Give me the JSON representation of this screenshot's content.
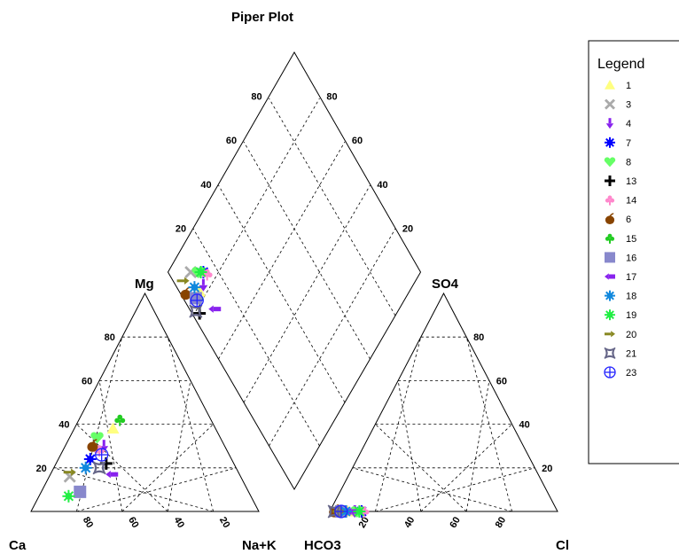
{
  "chart_data": {
    "type": "piper",
    "title": "Piper Plot",
    "axis_labels": {
      "ca": "Ca",
      "mg": "Mg",
      "na_k": "Na+K",
      "hco3": "HCO3",
      "so4": "SO4",
      "cl": "Cl"
    },
    "ticks": [
      "20",
      "40",
      "60",
      "80"
    ],
    "grid": "dashed",
    "legend": {
      "title": "Legend",
      "placement": "right"
    },
    "series": [
      {
        "name": "1",
        "marker": "triangle-up",
        "color": "#ffff80",
        "cation": {
          "ca": 45,
          "mg": 38,
          "nak": 17
        },
        "anion": {
          "hco3": 92,
          "so4": 0,
          "cl": 8
        }
      },
      {
        "name": "3",
        "marker": "x",
        "color": "#aaaaaa",
        "cation": {
          "ca": 75,
          "mg": 16,
          "nak": 9
        },
        "anion": {
          "hco3": 91,
          "so4": 0,
          "cl": 9
        }
      },
      {
        "name": "4",
        "marker": "arrow-down",
        "color": "#8822ee",
        "cation": {
          "ca": 53,
          "mg": 30,
          "nak": 17
        },
        "anion": {
          "hco3": 89,
          "so4": 0,
          "cl": 11
        }
      },
      {
        "name": "7",
        "marker": "asterisk",
        "color": "#0000ff",
        "cation": {
          "ca": 62,
          "mg": 24,
          "nak": 14
        },
        "anion": {
          "hco3": 86,
          "so4": 0,
          "cl": 14
        }
      },
      {
        "name": "8",
        "marker": "heart",
        "color": "#66ff66",
        "cation": {
          "ca": 54,
          "mg": 34,
          "nak": 12
        },
        "anion": {
          "hco3": 88,
          "so4": 0,
          "cl": 12
        }
      },
      {
        "name": "13",
        "marker": "plus",
        "color": "#000000",
        "cation": {
          "ca": 56,
          "mg": 22,
          "nak": 22
        },
        "anion": {
          "hco3": 97,
          "so4": 0,
          "cl": 3
        }
      },
      {
        "name": "14",
        "marker": "club",
        "color": "#ff88cc",
        "cation": {
          "ca": 56,
          "mg": 28,
          "nak": 16
        },
        "anion": {
          "hco3": 85,
          "so4": 0,
          "cl": 15
        }
      },
      {
        "name": "6",
        "marker": "apple",
        "color": "#884400",
        "cation": {
          "ca": 58,
          "mg": 30,
          "nak": 12
        },
        "anion": {
          "hco3": 98,
          "so4": 0,
          "cl": 2
        }
      },
      {
        "name": "15",
        "marker": "club",
        "color": "#22cc22",
        "cation": {
          "ca": 40,
          "mg": 42,
          "nak": 18
        },
        "anion": {
          "hco3": 94,
          "so4": 0,
          "cl": 6
        }
      },
      {
        "name": "16",
        "marker": "square",
        "color": "#8888cc",
        "cation": {
          "ca": 74,
          "mg": 9,
          "nak": 17
        },
        "anion": {
          "hco3": 95,
          "so4": 0,
          "cl": 5
        }
      },
      {
        "name": "17",
        "marker": "arrow-left",
        "color": "#8822ee",
        "cation": {
          "ca": 56,
          "mg": 17,
          "nak": 27
        },
        "anion": {
          "hco3": 90,
          "so4": 0,
          "cl": 10
        }
      },
      {
        "name": "18",
        "marker": "asterisk",
        "color": "#1188dd",
        "cation": {
          "ca": 66,
          "mg": 20,
          "nak": 14
        },
        "anion": {
          "hco3": 93,
          "so4": 0,
          "cl": 7
        }
      },
      {
        "name": "19",
        "marker": "asterisk",
        "color": "#22ee44",
        "cation": {
          "ca": 80,
          "mg": 7,
          "nak": 13
        },
        "anion": {
          "hco3": 87,
          "so4": 0,
          "cl": 13
        }
      },
      {
        "name": "20",
        "marker": "arrow-right",
        "color": "#888822",
        "cation": {
          "ca": 74,
          "mg": 18,
          "nak": 8
        },
        "anion": {
          "hco3": 96,
          "so4": 0,
          "cl": 4
        }
      },
      {
        "name": "21",
        "marker": "bowtie",
        "color": "#666688",
        "cation": {
          "ca": 60,
          "mg": 20,
          "nak": 20
        },
        "anion": {
          "hco3": 98,
          "so4": 0,
          "cl": 2
        }
      },
      {
        "name": "23",
        "marker": "circle-plus",
        "color": "#2222ff",
        "cation": {
          "ca": 56,
          "mg": 26,
          "nak": 18
        },
        "anion": {
          "hco3": 95,
          "so4": 0,
          "cl": 5
        }
      }
    ]
  }
}
